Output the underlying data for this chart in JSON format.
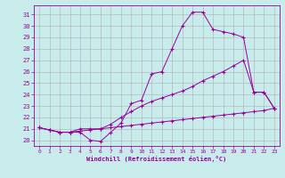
{
  "xlabel": "Windchill (Refroidissement éolien,°C)",
  "bg_color": "#c8ecec",
  "line_color": "#990099",
  "grid_color": "#b0b0b0",
  "xlim": [
    -0.5,
    23.5
  ],
  "ylim": [
    19.5,
    31.8
  ],
  "yticks": [
    20,
    21,
    22,
    23,
    24,
    25,
    26,
    27,
    28,
    29,
    30,
    31
  ],
  "xticks": [
    0,
    1,
    2,
    3,
    4,
    5,
    6,
    7,
    8,
    9,
    10,
    11,
    12,
    13,
    14,
    15,
    16,
    17,
    18,
    19,
    20,
    21,
    22,
    23
  ],
  "line1_x": [
    0,
    1,
    2,
    3,
    4,
    5,
    6,
    7,
    8,
    9,
    10,
    11,
    12,
    13,
    14,
    15,
    16,
    17,
    18,
    19,
    20,
    21,
    22,
    23
  ],
  "line1_y": [
    21.1,
    20.9,
    20.7,
    20.7,
    20.7,
    20.0,
    19.9,
    20.7,
    21.5,
    23.2,
    23.5,
    25.8,
    26.0,
    28.0,
    30.0,
    31.2,
    31.2,
    29.7,
    29.5,
    29.3,
    29.0,
    24.2,
    24.2,
    22.8
  ],
  "line2_x": [
    0,
    1,
    2,
    3,
    4,
    5,
    6,
    7,
    8,
    9,
    10,
    11,
    12,
    13,
    14,
    15,
    16,
    17,
    18,
    19,
    20,
    21,
    22,
    23
  ],
  "line2_y": [
    21.1,
    20.9,
    20.7,
    20.7,
    21.0,
    21.0,
    21.0,
    21.4,
    22.0,
    22.5,
    23.0,
    23.4,
    23.7,
    24.0,
    24.3,
    24.7,
    25.2,
    25.6,
    26.0,
    26.5,
    27.0,
    24.2,
    24.2,
    22.8
  ],
  "line3_x": [
    0,
    1,
    2,
    3,
    4,
    5,
    6,
    7,
    8,
    9,
    10,
    11,
    12,
    13,
    14,
    15,
    16,
    17,
    18,
    19,
    20,
    21,
    22,
    23
  ],
  "line3_y": [
    21.1,
    20.9,
    20.7,
    20.7,
    20.8,
    20.9,
    21.0,
    21.1,
    21.2,
    21.3,
    21.4,
    21.5,
    21.6,
    21.7,
    21.8,
    21.9,
    22.0,
    22.1,
    22.2,
    22.3,
    22.4,
    22.5,
    22.6,
    22.8
  ]
}
